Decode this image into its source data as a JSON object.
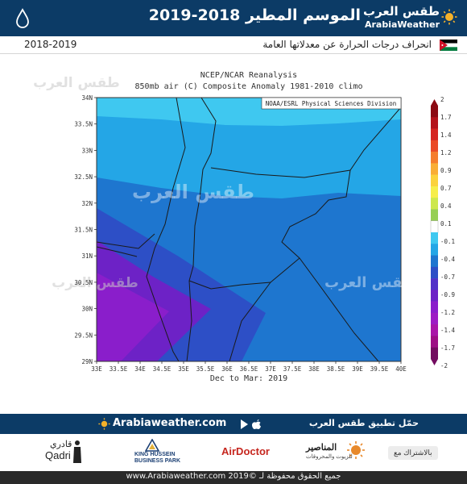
{
  "header": {
    "title": "الموسم المطير 2018-2019",
    "logo_ar": "طقس العرب",
    "logo_en": "ArabiaWeather"
  },
  "subheader": {
    "subtitle": "انحراف درجات الحرارة عن معدلاتها العامة",
    "years": "2018-2019"
  },
  "map": {
    "title_line1": "NCEP/NCAR Reanalysis",
    "title_line2": "850mb air (C) Composite Anomaly 1981-2010 climo",
    "credit": "NOAA/ESRL Physical Sciences Division",
    "bottom_label": "Dec to Mar: 2019",
    "watermark": "طقس العرب",
    "lat_labels": [
      "34N",
      "33.5N",
      "33N",
      "32.5N",
      "32N",
      "31.5N",
      "31N",
      "30.5N",
      "30N",
      "29.5N",
      "29N"
    ],
    "lon_labels": [
      "33E",
      "33.5E",
      "34E",
      "34.5E",
      "35E",
      "35.5E",
      "36E",
      "36.5E",
      "37E",
      "37.5E",
      "38E",
      "38.5E",
      "39E",
      "39.5E",
      "40E"
    ],
    "lat_range": [
      29,
      34
    ],
    "lon_range": [
      33,
      40
    ],
    "colorbar": {
      "labels": [
        "2",
        "1.7",
        "1.4",
        "1.2",
        "0.9",
        "0.7",
        "0.4",
        "0.1",
        "-0.1",
        "-0.4",
        "-0.7",
        "-0.9",
        "-1.2",
        "-1.4",
        "-1.7",
        "-2"
      ],
      "colors": [
        "#8b0a12",
        "#b4131b",
        "#d52421",
        "#ea4a25",
        "#f57d2c",
        "#f9ad35",
        "#fbd23c",
        "#f6ee4a",
        "#cde84c",
        "#97cf54",
        "#ffffff",
        "#3fc8f0",
        "#24a6e6",
        "#1e76cf",
        "#2d4fc6",
        "#5232c8",
        "#6d22c6",
        "#8a1ecb",
        "#9d1cc4",
        "#a916a8",
        "#9d0f85",
        "#730c60"
      ]
    }
  },
  "app_bar": {
    "text": "حمّل تطبيق طقس العرب",
    "site": "Arabiaweather.com"
  },
  "sponsors": {
    "subscribe": "بالاشتراك مع",
    "manaseer": "المناصير",
    "manaseer_sub": "للزيوت والمحروقات",
    "airdoctor": "AirDoctor",
    "khbp1": "KING HUSSEIN",
    "khbp2": "BUSINESS PARK",
    "qadri_ar": "قادري",
    "qadri_en": "Qadri"
  },
  "footer": {
    "copyright": "www.Arabiaweather.com 2019© جميع الحقوق محفوظة لـ"
  }
}
